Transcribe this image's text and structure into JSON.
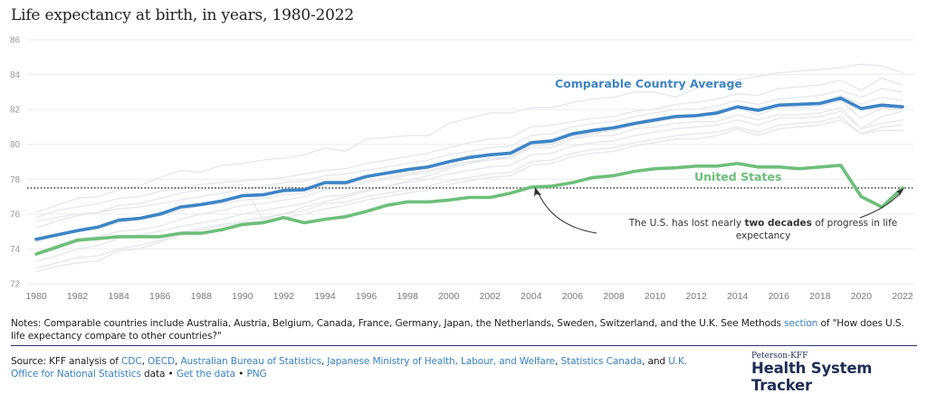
{
  "title": "Life expectancy at birth, in years, 1980-2022",
  "chart_data": {
    "type": "line",
    "title": "Life expectancy at birth, in years, 1980-2022",
    "xlabel": "",
    "ylabel": "",
    "ylim": [
      72,
      86
    ],
    "xlim": [
      1980,
      2022
    ],
    "yticks": [
      72,
      74,
      76,
      78,
      80,
      82,
      84,
      86
    ],
    "xticks": [
      1980,
      1982,
      1984,
      1986,
      1988,
      1990,
      1992,
      1994,
      1996,
      1998,
      2000,
      2002,
      2004,
      2006,
      2008,
      2010,
      2012,
      2014,
      2016,
      2018,
      2020,
      2022
    ],
    "grid": true,
    "x": [
      1980,
      1981,
      1982,
      1983,
      1984,
      1985,
      1986,
      1987,
      1988,
      1989,
      1990,
      1991,
      1992,
      1993,
      1994,
      1995,
      1996,
      1997,
      1998,
      1999,
      2000,
      2001,
      2002,
      2003,
      2004,
      2005,
      2006,
      2007,
      2008,
      2009,
      2010,
      2011,
      2012,
      2013,
      2014,
      2015,
      2016,
      2017,
      2018,
      2019,
      2020,
      2021,
      2022
    ],
    "series": [
      {
        "name": "Comparable Country Average",
        "color": "#3d85c6",
        "values": [
          74.55,
          74.8,
          75.05,
          75.25,
          75.65,
          75.75,
          76.0,
          76.4,
          76.55,
          76.75,
          77.05,
          77.1,
          77.35,
          77.4,
          77.8,
          77.8,
          78.15,
          78.35,
          78.55,
          78.7,
          79.0,
          79.25,
          79.4,
          79.5,
          80.1,
          80.2,
          80.6,
          80.8,
          80.95,
          81.2,
          81.4,
          81.6,
          81.65,
          81.8,
          82.15,
          81.95,
          82.25,
          82.3,
          82.35,
          82.65,
          82.05,
          82.25,
          82.15
        ]
      },
      {
        "name": "United States",
        "color": "#6dbf7a",
        "values": [
          73.7,
          74.1,
          74.5,
          74.6,
          74.7,
          74.7,
          74.7,
          74.9,
          74.9,
          75.1,
          75.4,
          75.5,
          75.8,
          75.5,
          75.7,
          75.85,
          76.15,
          76.5,
          76.7,
          76.7,
          76.8,
          76.95,
          76.95,
          77.2,
          77.55,
          77.6,
          77.8,
          78.1,
          78.2,
          78.45,
          78.6,
          78.65,
          78.75,
          78.75,
          78.9,
          78.7,
          78.7,
          78.6,
          78.7,
          78.8,
          77.0,
          76.4,
          77.5
        ]
      }
    ],
    "background_series": [
      {
        "values": [
          76.1,
          76.5,
          76.9,
          77.0,
          77.4,
          77.6,
          78.1,
          78.5,
          78.4,
          78.8,
          78.9,
          79.1,
          79.2,
          79.4,
          79.8,
          79.6,
          80.3,
          80.4,
          80.5,
          80.5,
          81.2,
          81.5,
          81.8,
          81.8,
          82.1,
          82.1,
          82.4,
          82.6,
          82.7,
          83.0,
          83.0,
          82.7,
          83.2,
          83.4,
          83.7,
          83.9,
          84.1,
          84.2,
          84.3,
          84.4,
          84.6,
          84.5,
          84.1
        ]
      },
      {
        "values": [
          75.8,
          76.2,
          76.4,
          76.6,
          76.9,
          77.0,
          77.3,
          77.5,
          77.7,
          77.8,
          77.9,
          78.0,
          78.1,
          78.3,
          78.5,
          78.6,
          78.9,
          79.1,
          79.3,
          79.5,
          79.8,
          80.1,
          80.3,
          80.4,
          81.0,
          81.1,
          81.3,
          81.5,
          81.6,
          81.9,
          82.0,
          82.3,
          82.4,
          82.6,
          82.9,
          82.8,
          83.2,
          83.3,
          83.4,
          83.7,
          83.1,
          83.8,
          83.4
        ]
      },
      {
        "values": [
          75.2,
          75.6,
          75.9,
          76.1,
          76.3,
          76.4,
          76.6,
          76.8,
          77.0,
          77.2,
          77.4,
          77.6,
          77.8,
          77.9,
          78.2,
          78.3,
          78.5,
          78.7,
          78.9,
          79.1,
          79.4,
          79.6,
          79.8,
          79.9,
          80.5,
          80.6,
          81.0,
          81.2,
          81.3,
          81.6,
          81.8,
          82.0,
          82.0,
          82.2,
          82.5,
          82.3,
          82.6,
          82.7,
          82.8,
          83.1,
          82.7,
          83.2,
          83.0
        ]
      },
      {
        "values": [
          74.4,
          74.8,
          75.1,
          75.2,
          75.5,
          75.7,
          75.9,
          76.2,
          76.5,
          76.6,
          76.8,
          76.9,
          77.1,
          77.2,
          77.6,
          77.7,
          77.9,
          78.1,
          78.3,
          78.5,
          78.8,
          79.0,
          79.2,
          79.3,
          80.0,
          80.1,
          80.5,
          80.7,
          80.8,
          81.1,
          81.3,
          81.5,
          81.6,
          81.7,
          82.1,
          81.7,
          82.1,
          82.1,
          82.2,
          82.5,
          81.5,
          82.1,
          82.0
        ]
      },
      {
        "values": [
          73.8,
          74.2,
          74.6,
          74.7,
          75.0,
          75.1,
          75.3,
          75.7,
          76.0,
          76.2,
          76.5,
          76.6,
          76.8,
          77.0,
          77.4,
          77.5,
          77.8,
          78.0,
          78.2,
          78.4,
          78.7,
          79.0,
          79.1,
          79.2,
          79.8,
          79.8,
          80.3,
          80.5,
          80.5,
          80.9,
          81.0,
          81.2,
          81.3,
          81.3,
          81.7,
          81.4,
          81.7,
          81.7,
          81.8,
          82.1,
          80.9,
          81.6,
          81.9
        ]
      },
      {
        "values": [
          73.3,
          73.6,
          74.0,
          74.2,
          74.6,
          74.8,
          75.0,
          75.3,
          75.5,
          75.7,
          76.0,
          76.2,
          76.4,
          76.6,
          77.0,
          77.1,
          77.4,
          77.6,
          77.8,
          78.0,
          78.3,
          78.5,
          78.7,
          78.8,
          79.4,
          79.5,
          79.9,
          80.1,
          80.2,
          80.5,
          80.7,
          80.9,
          81.0,
          81.1,
          81.4,
          81.1,
          81.5,
          81.5,
          81.6,
          81.9,
          80.9,
          81.2,
          81.4
        ]
      },
      {
        "values": [
          72.9,
          73.2,
          73.5,
          73.6,
          74.0,
          74.2,
          74.5,
          74.9,
          75.2,
          75.4,
          75.6,
          75.8,
          76.0,
          76.2,
          76.6,
          76.7,
          77.0,
          77.2,
          77.4,
          77.6,
          77.9,
          78.1,
          78.3,
          78.4,
          79.0,
          79.1,
          79.5,
          79.7,
          79.8,
          80.1,
          80.3,
          80.5,
          80.6,
          80.7,
          81.0,
          80.7,
          81.1,
          81.2,
          81.3,
          81.6,
          80.6,
          81.0,
          81.1
        ]
      },
      {
        "values": [
          72.7,
          73.0,
          73.2,
          73.3,
          73.9,
          74.0,
          74.4,
          74.8,
          75.1,
          75.3,
          75.5,
          75.6,
          75.8,
          76.0,
          76.3,
          76.5,
          76.8,
          77.0,
          77.2,
          77.4,
          77.7,
          77.9,
          78.1,
          78.2,
          78.8,
          78.9,
          79.3,
          79.5,
          79.6,
          79.9,
          80.1,
          80.3,
          80.3,
          80.5,
          80.9,
          80.5,
          80.9,
          81.0,
          81.1,
          81.4,
          80.6,
          80.8,
          80.8
        ]
      },
      {
        "values": [
          75.6,
          75.8,
          76.0,
          76.1,
          76.5,
          76.6,
          76.9,
          77.2,
          77.4,
          77.5,
          77.7,
          75.7,
          76.0,
          76.4,
          76.7,
          77.0,
          77.3,
          77.6,
          77.9,
          78.2,
          78.6,
          78.9,
          79.1,
          79.3,
          79.9,
          80.0,
          80.4,
          80.6,
          80.8,
          81.1,
          81.4,
          81.6,
          81.7,
          81.9,
          82.2,
          82.0,
          82.3,
          82.3,
          82.4,
          82.8,
          82.3,
          82.7,
          82.5
        ]
      }
    ],
    "reference_line": {
      "value": 77.5,
      "style": "dotted"
    },
    "annotations": [
      {
        "text_before": "The U.S. has lost nearly ",
        "text_bold": "two decades",
        "text_after": " of progress in life",
        "line2": "expectancy"
      }
    ]
  },
  "notes": {
    "prefix": "Notes: Comparable countries include Australia, Austria, Belgium, Canada, France, Germany, Japan, the Netherlands, Sweden, Switzerland, and the U.K. See Methods ",
    "link": "section",
    "suffix": " of \"How does U.S. life expectancy compare to other countries?\""
  },
  "source": {
    "prefix": "Source: KFF analysis of ",
    "links": [
      "CDC",
      "OECD",
      "Australian Bureau of Statistics",
      "Japanese Ministry of Health, Labour, and Welfare",
      "Statistics Canada",
      "U.K. Office for National Statistics"
    ],
    "sep": ", ",
    "and": ", and ",
    "data_word": " data",
    "bullet": " • ",
    "get_data": "Get the data",
    "png": "PNG"
  },
  "logo": {
    "small": "Peterson-KFF",
    "big": "Health System Tracker"
  }
}
